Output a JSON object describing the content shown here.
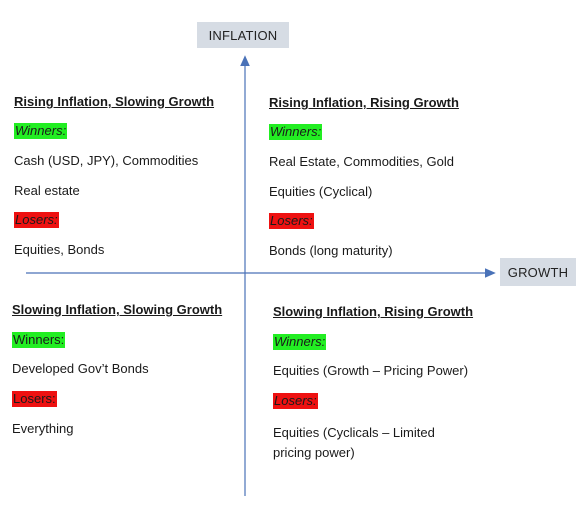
{
  "axes": {
    "vertical_label": "INFLATION",
    "horizontal_label": "GROWTH",
    "axis_color": "#4a72b8",
    "label_bg": "#d6dce4"
  },
  "quadrants": {
    "top_left": {
      "title": "Rising Inflation, Slowing Growth",
      "winners_label": "Winners:",
      "winners": [
        "Cash (USD, JPY), Commodities",
        "Real estate"
      ],
      "losers_label": "Losers:",
      "losers": [
        "Equities, Bonds"
      ]
    },
    "top_right": {
      "title": "Rising Inflation, Rising Growth",
      "winners_label": "Winners:",
      "winners": [
        "Real Estate, Commodities, Gold",
        "Equities (Cyclical)"
      ],
      "losers_label": "Losers:",
      "losers": [
        "Bonds (long maturity)"
      ]
    },
    "bottom_left": {
      "title": "Slowing Inflation, Slowing Growth",
      "winners_label": "Winners:",
      "winners": [
        "Developed Gov’t Bonds"
      ],
      "losers_label": "Losers:",
      "losers": [
        "Everything"
      ]
    },
    "bottom_right": {
      "title": "Slowing Inflation, Rising Growth",
      "winners_label": "Winners:",
      "winners": [
        "Equities (Growth – Pricing Power)"
      ],
      "losers_label": "Losers:",
      "losers": [
        "Equities (Cyclicals – Limited pricing power)"
      ]
    }
  },
  "colors": {
    "winners_highlight": "#22ee22",
    "losers_highlight": "#ee1111"
  }
}
